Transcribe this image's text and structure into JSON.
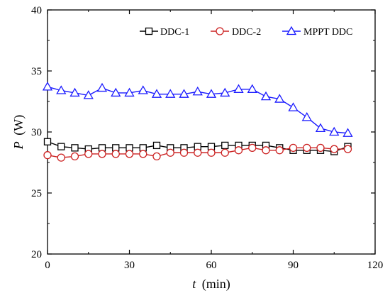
{
  "chart_data": {
    "type": "line",
    "title": "",
    "xlabel_var": "t",
    "xlabel_unit": "(min)",
    "ylabel_var": "P",
    "ylabel_unit": "(W)",
    "xlim": [
      0,
      120
    ],
    "ylim": [
      20,
      40
    ],
    "xticks": [
      0,
      30,
      60,
      90,
      120
    ],
    "yticks": [
      20,
      25,
      30,
      35,
      40
    ],
    "grid": false,
    "legend_position": "top-right",
    "x": [
      0,
      5,
      10,
      15,
      20,
      25,
      30,
      35,
      40,
      45,
      50,
      55,
      60,
      65,
      70,
      75,
      80,
      85,
      90,
      95,
      100,
      105,
      110
    ],
    "series": [
      {
        "name": "DDC-1",
        "color": "#000000",
        "marker": "square",
        "values": [
          29.2,
          28.8,
          28.7,
          28.6,
          28.7,
          28.7,
          28.7,
          28.7,
          28.9,
          28.7,
          28.7,
          28.8,
          28.8,
          28.9,
          28.9,
          28.9,
          28.9,
          28.7,
          28.5,
          28.5,
          28.5,
          28.4,
          28.8
        ]
      },
      {
        "name": "DDC-2",
        "color": "#cc2222",
        "marker": "circle",
        "values": [
          28.1,
          27.9,
          28.0,
          28.2,
          28.2,
          28.2,
          28.2,
          28.2,
          28.0,
          28.3,
          28.3,
          28.3,
          28.3,
          28.3,
          28.5,
          28.7,
          28.5,
          28.5,
          28.7,
          28.7,
          28.7,
          28.6,
          28.6
        ]
      },
      {
        "name": "MPPT DDC",
        "color": "#1a1aff",
        "marker": "triangle",
        "values": [
          33.7,
          33.4,
          33.2,
          33.0,
          33.6,
          33.2,
          33.2,
          33.4,
          33.1,
          33.1,
          33.1,
          33.3,
          33.1,
          33.2,
          33.5,
          33.5,
          32.9,
          32.7,
          32.0,
          31.2,
          30.3,
          30.0,
          29.9
        ]
      }
    ]
  }
}
